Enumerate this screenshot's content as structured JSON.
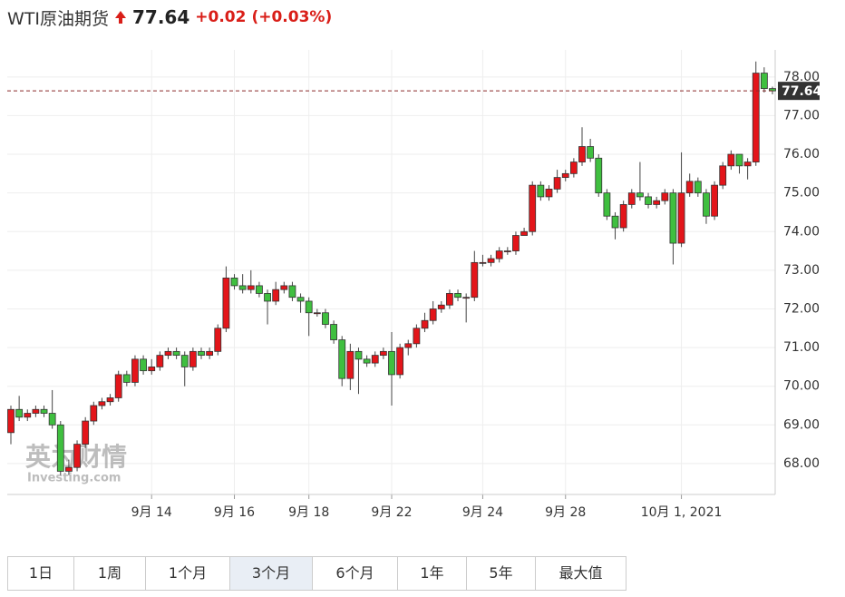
{
  "header": {
    "title": "WTI原油期货",
    "price": 77.64,
    "change": "+0.02",
    "change_pct": "(+0.03%)"
  },
  "watermark": {
    "cn": "英为财情",
    "en": "Investing.com"
  },
  "buttons": [
    "1日",
    "1周",
    "1个月",
    "3个月",
    "6个月",
    "1年",
    "5年",
    "最大值"
  ],
  "selected_button": 3,
  "chart_data": {
    "type": "candlestick",
    "categories": [
      null,
      null,
      null,
      null,
      null,
      null,
      null,
      null,
      null,
      null,
      null,
      null,
      null,
      null,
      null,
      null,
      null,
      "9月 14",
      null,
      null,
      null,
      null,
      null,
      null,
      null,
      null,
      null,
      "9月 16",
      null,
      null,
      null,
      null,
      null,
      null,
      null,
      null,
      "9月 18",
      null,
      null,
      null,
      null,
      null,
      null,
      null,
      null,
      null,
      "9月 22",
      null,
      null,
      null,
      null,
      null,
      null,
      null,
      null,
      null,
      null,
      "9月 24",
      null,
      null,
      null,
      null,
      null,
      null,
      null,
      null,
      null,
      "9月 28",
      null,
      null,
      null,
      null,
      null,
      null,
      null,
      null,
      null,
      null,
      null,
      null,
      null,
      "10月 1, 2021",
      null,
      null,
      null,
      null,
      null,
      null,
      null,
      null,
      null,
      null,
      null
    ],
    "open": [
      68.8,
      69.4,
      69.2,
      69.3,
      69.4,
      69.3,
      69.0,
      67.8,
      67.9,
      68.5,
      69.1,
      69.5,
      69.6,
      69.7,
      70.3,
      70.1,
      70.7,
      70.4,
      70.5,
      70.8,
      70.9,
      70.8,
      70.5,
      70.9,
      70.8,
      70.9,
      71.5,
      72.8,
      72.6,
      72.5,
      72.6,
      72.4,
      72.2,
      72.5,
      72.6,
      72.3,
      72.2,
      71.9,
      71.9,
      71.6,
      71.2,
      70.2,
      70.9,
      70.7,
      70.6,
      70.8,
      70.9,
      70.3,
      71.0,
      71.1,
      71.5,
      71.7,
      72.0,
      72.1,
      72.4,
      72.3,
      72.3,
      73.2,
      73.2,
      73.3,
      73.5,
      73.5,
      73.9,
      74.0,
      75.2,
      74.9,
      75.1,
      75.4,
      75.5,
      75.8,
      76.2,
      75.9,
      75.0,
      74.4,
      74.1,
      74.7,
      75.0,
      74.9,
      74.7,
      74.8,
      75.0,
      73.7,
      75.0,
      75.3,
      75.0,
      74.4,
      75.2,
      75.7,
      76.0,
      75.7,
      75.8,
      78.1,
      77.7
    ],
    "high": [
      69.5,
      69.75,
      69.4,
      69.5,
      69.5,
      69.9,
      69.1,
      68.1,
      68.6,
      69.2,
      69.6,
      69.7,
      69.8,
      70.4,
      70.4,
      70.8,
      70.8,
      70.7,
      70.9,
      71.0,
      71.0,
      70.9,
      71.0,
      71.0,
      71.0,
      71.6,
      73.1,
      72.9,
      72.9,
      73.0,
      72.7,
      72.5,
      72.7,
      72.7,
      72.7,
      72.4,
      72.3,
      72.0,
      72.0,
      71.7,
      71.3,
      71.1,
      71.0,
      70.8,
      70.9,
      71.0,
      71.4,
      71.1,
      71.2,
      71.6,
      71.9,
      72.2,
      72.2,
      72.5,
      72.5,
      72.4,
      73.5,
      73.4,
      73.4,
      73.6,
      73.6,
      74.0,
      74.1,
      75.3,
      75.3,
      75.2,
      75.6,
      75.6,
      75.9,
      76.7,
      76.4,
      76.0,
      75.1,
      74.5,
      74.8,
      75.1,
      75.8,
      75.0,
      74.9,
      75.1,
      75.1,
      76.05,
      75.5,
      75.4,
      75.1,
      75.3,
      75.8,
      76.1,
      76.0,
      75.9,
      78.4,
      78.25,
      77.75
    ],
    "low": [
      68.5,
      69.1,
      69.1,
      69.2,
      69.2,
      68.9,
      67.7,
      67.7,
      67.8,
      68.4,
      69.0,
      69.4,
      69.5,
      69.6,
      70.0,
      70.0,
      70.3,
      70.3,
      70.4,
      70.7,
      70.7,
      70.0,
      70.4,
      70.7,
      70.7,
      70.8,
      71.4,
      72.5,
      72.4,
      72.4,
      72.3,
      71.6,
      72.1,
      72.4,
      72.2,
      71.9,
      71.3,
      71.8,
      71.5,
      71.1,
      70.0,
      69.9,
      69.8,
      70.5,
      70.5,
      70.7,
      69.5,
      70.2,
      70.8,
      71.0,
      71.4,
      71.6,
      71.9,
      72.0,
      72.2,
      71.65,
      72.2,
      73.1,
      73.1,
      73.2,
      73.4,
      73.4,
      73.9,
      73.9,
      74.8,
      74.8,
      75.0,
      75.3,
      75.4,
      75.7,
      75.8,
      74.9,
      74.3,
      73.8,
      74.0,
      74.6,
      74.8,
      74.6,
      74.6,
      74.7,
      73.15,
      73.6,
      74.9,
      74.9,
      74.2,
      74.3,
      75.1,
      75.6,
      75.5,
      75.35,
      75.7,
      77.6,
      77.55
    ],
    "close": [
      69.4,
      69.2,
      69.3,
      69.4,
      69.3,
      69.0,
      67.8,
      67.9,
      68.5,
      69.1,
      69.5,
      69.6,
      69.7,
      70.3,
      70.1,
      70.7,
      70.4,
      70.5,
      70.8,
      70.9,
      70.8,
      70.5,
      70.9,
      70.8,
      70.9,
      71.5,
      72.8,
      72.6,
      72.5,
      72.6,
      72.4,
      72.2,
      72.5,
      72.6,
      72.3,
      72.2,
      71.9,
      71.9,
      71.6,
      71.2,
      70.2,
      70.9,
      70.7,
      70.6,
      70.8,
      70.9,
      70.3,
      71.0,
      71.1,
      71.5,
      71.7,
      72.0,
      72.1,
      72.4,
      72.3,
      72.3,
      73.2,
      73.2,
      73.3,
      73.5,
      73.5,
      73.9,
      74.0,
      75.2,
      74.9,
      75.1,
      75.4,
      75.5,
      75.8,
      76.2,
      75.9,
      75.0,
      74.4,
      74.1,
      74.7,
      75.0,
      74.9,
      74.7,
      74.8,
      75.0,
      73.7,
      75.0,
      75.3,
      75.0,
      74.4,
      75.2,
      75.7,
      76.0,
      75.7,
      75.8,
      78.1,
      77.7,
      77.64
    ],
    "up_color": "#e3151a",
    "down_color": "#3fbf3f",
    "ylim": [
      67.2,
      78.7
    ],
    "yticks": [
      {
        "value": 68,
        "label": "68.00"
      },
      {
        "value": 69,
        "label": "69.00"
      },
      {
        "value": 70,
        "label": "70.00"
      },
      {
        "value": 71,
        "label": "71.00"
      },
      {
        "value": 72,
        "label": "72.00"
      },
      {
        "value": 73,
        "label": "73.00"
      },
      {
        "value": 74,
        "label": "74.00"
      },
      {
        "value": 75,
        "label": "75.00"
      },
      {
        "value": 76,
        "label": "76.00"
      },
      {
        "value": 77,
        "label": "77.00"
      },
      {
        "value": 78,
        "label": "78.00"
      }
    ],
    "grid": true
  }
}
